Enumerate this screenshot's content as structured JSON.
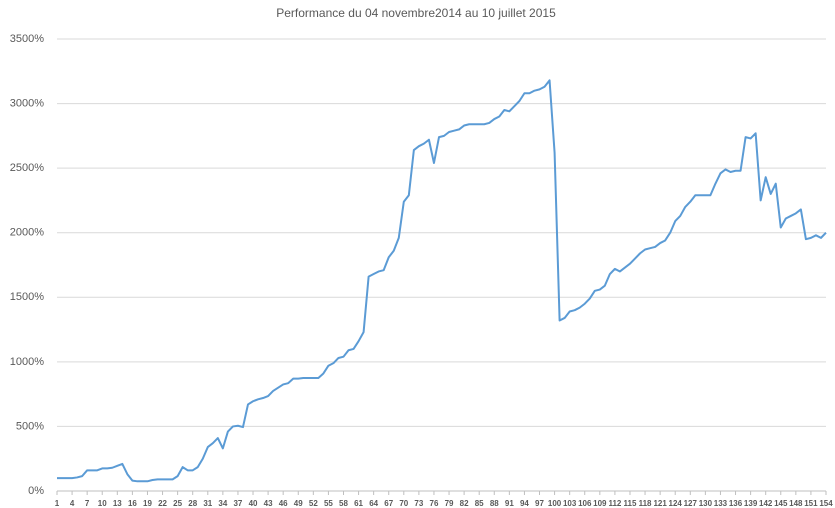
{
  "chart_data": {
    "type": "line",
    "title": "Performance du 04 novembre2014 au 10 juillet 2015",
    "x": [
      1,
      2,
      3,
      4,
      5,
      6,
      7,
      8,
      9,
      10,
      11,
      12,
      13,
      14,
      15,
      16,
      17,
      18,
      19,
      20,
      21,
      22,
      23,
      24,
      25,
      26,
      27,
      28,
      29,
      30,
      31,
      32,
      33,
      34,
      35,
      36,
      37,
      38,
      39,
      40,
      41,
      42,
      43,
      44,
      45,
      46,
      47,
      48,
      49,
      50,
      51,
      52,
      53,
      54,
      55,
      56,
      57,
      58,
      59,
      60,
      61,
      62,
      63,
      64,
      65,
      66,
      67,
      68,
      69,
      70,
      71,
      72,
      73,
      74,
      75,
      76,
      77,
      78,
      79,
      80,
      81,
      82,
      83,
      84,
      85,
      86,
      87,
      88,
      89,
      90,
      91,
      92,
      93,
      94,
      95,
      96,
      97,
      98,
      99,
      100,
      101,
      102,
      103,
      104,
      105,
      106,
      107,
      108,
      109,
      110,
      111,
      112,
      113,
      114,
      115,
      116,
      117,
      118,
      119,
      120,
      121,
      122,
      123,
      124,
      125,
      126,
      127,
      128,
      129,
      130,
      131,
      132,
      133,
      134,
      135,
      136,
      137,
      138,
      139,
      140,
      141,
      142,
      143,
      144,
      145,
      146,
      147,
      148,
      149,
      150,
      151,
      152,
      153,
      154
    ],
    "series": [
      {
        "color": "#5b9bd5",
        "values": [
          100,
          100,
          100,
          100,
          105,
          115,
          160,
          160,
          160,
          175,
          175,
          180,
          195,
          210,
          130,
          80,
          75,
          75,
          75,
          85,
          90,
          90,
          90,
          90,
          115,
          185,
          160,
          160,
          185,
          250,
          340,
          370,
          410,
          330,
          460,
          500,
          505,
          495,
          670,
          695,
          710,
          720,
          735,
          775,
          800,
          825,
          835,
          870,
          870,
          875,
          875,
          875,
          875,
          910,
          970,
          990,
          1030,
          1040,
          1090,
          1100,
          1160,
          1230,
          1660,
          1680,
          1700,
          1710,
          1810,
          1860,
          1960,
          2240,
          2290,
          2640,
          2670,
          2690,
          2720,
          2540,
          2740,
          2750,
          2780,
          2790,
          2800,
          2830,
          2840,
          2840,
          2840,
          2840,
          2850,
          2880,
          2900,
          2950,
          2940,
          2980,
          3020,
          3080,
          3080,
          3100,
          3110,
          3130,
          3180,
          2620,
          1320,
          1340,
          1390,
          1400,
          1420,
          1450,
          1490,
          1550,
          1560,
          1590,
          1680,
          1720,
          1700,
          1730,
          1760,
          1800,
          1840,
          1870,
          1880,
          1890,
          1920,
          1940,
          2000,
          2090,
          2130,
          2200,
          2240,
          2290,
          2290,
          2290,
          2290,
          2380,
          2460,
          2490,
          2470,
          2480,
          2480,
          2740,
          2730,
          2770,
          2250,
          2430,
          2300,
          2380,
          2040,
          2110,
          2130,
          2150,
          2180,
          1950,
          1960,
          1980,
          1960,
          2000
        ]
      }
    ],
    "xlim": [
      1,
      154
    ],
    "xticks": [
      1,
      4,
      7,
      10,
      13,
      16,
      19,
      22,
      25,
      28,
      31,
      34,
      37,
      40,
      43,
      46,
      49,
      52,
      55,
      58,
      61,
      64,
      67,
      70,
      73,
      76,
      79,
      82,
      85,
      88,
      91,
      94,
      97,
      100,
      103,
      106,
      109,
      112,
      115,
      118,
      121,
      124,
      127,
      130,
      133,
      136,
      139,
      142,
      145,
      148,
      151,
      154
    ],
    "ylim": [
      0,
      3500
    ],
    "yticks": [
      {
        "value": 0,
        "label": "0%"
      },
      {
        "value": 500,
        "label": "500%"
      },
      {
        "value": 1000,
        "label": "1000%"
      },
      {
        "value": 1500,
        "label": "1500%"
      },
      {
        "value": 2000,
        "label": "2000%"
      },
      {
        "value": 2500,
        "label": "2500%"
      },
      {
        "value": 3000,
        "label": "3000%"
      },
      {
        "value": 3500,
        "label": "3500%"
      }
    ],
    "grid": true
  }
}
